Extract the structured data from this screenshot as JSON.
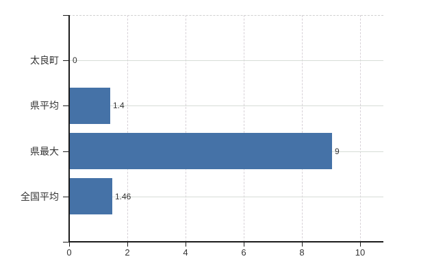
{
  "chart_data": {
    "type": "bar",
    "orientation": "horizontal",
    "title": "",
    "categories": [
      "太良町",
      "県平均",
      "県最大",
      "全国平均"
    ],
    "values": [
      0,
      1.4,
      9,
      1.46
    ],
    "value_labels": [
      "0",
      "1.4",
      "9",
      "1.46"
    ],
    "x_ticks": [
      0,
      2,
      4,
      6,
      8,
      10
    ],
    "x_tick_labels": [
      "0",
      "2",
      "4",
      "6",
      "8",
      "10"
    ],
    "xlim": [
      0,
      10.8
    ],
    "grid": true,
    "legend_visible": false,
    "gridline_style": {
      "horizontal": "solid",
      "vertical": "dashed",
      "plot_top_border": "dashed"
    },
    "colors": {
      "bar": "#4572a7",
      "axis": "#1a1a1a",
      "grid": "#d6d6d6",
      "text": "#333333",
      "background": "#ffffff"
    }
  }
}
